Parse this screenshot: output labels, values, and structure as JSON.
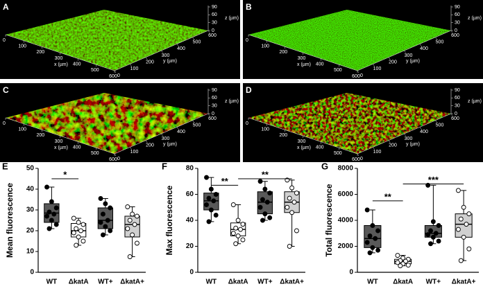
{
  "images": [
    {
      "label": "A",
      "style": "dense"
    },
    {
      "label": "B",
      "style": "fine"
    },
    {
      "label": "C",
      "style": "patchy"
    },
    {
      "label": "D",
      "style": "sparse"
    }
  ],
  "image_axes": {
    "x_label": "x (µm)",
    "y_label": "y (µm)",
    "z_label": "z (µm)",
    "x_ticks": [
      0,
      100,
      200,
      300,
      400,
      500,
      600
    ],
    "y_ticks": [
      0,
      100,
      200,
      300,
      400,
      500,
      600
    ],
    "z_ticks": [
      0,
      30,
      60,
      90
    ]
  },
  "chart_data": [
    {
      "type": "box",
      "label": "E",
      "ylabel": "Mean fluorescence",
      "categories": [
        "WT",
        "ΔkatA",
        "WT+",
        "ΔkatA+"
      ],
      "ylim": [
        0,
        50
      ],
      "yticks": [
        0,
        10,
        20,
        30,
        40,
        50
      ],
      "boxes": [
        {
          "min": 21,
          "q1": 24,
          "median": 28.5,
          "q3": 33,
          "max": 41,
          "color": "#595959",
          "point_color": "#000",
          "points": [
            41,
            34,
            31,
            29,
            28,
            27,
            25,
            23,
            21
          ]
        },
        {
          "min": 13,
          "q1": 17,
          "median": 20,
          "q3": 23.5,
          "max": 26,
          "color": "#fff",
          "point_color": "#fff",
          "points": [
            26,
            24,
            23,
            21,
            20,
            19,
            17,
            15,
            13
          ]
        },
        {
          "min": 18,
          "q1": 21,
          "median": 25,
          "q3": 31,
          "max": 35.5,
          "color": "#595959",
          "point_color": "#000",
          "points": [
            35.5,
            33,
            31,
            28,
            25,
            24,
            22,
            20,
            18
          ]
        },
        {
          "min": 7.5,
          "q1": 17,
          "median": 23,
          "q3": 27,
          "max": 31.5,
          "color": "#d0d0d0",
          "point_color": "#fff",
          "points": [
            31.5,
            28,
            27,
            25,
            23,
            21,
            18,
            14,
            7.5
          ]
        }
      ],
      "significance": [
        {
          "label": "*",
          "from": 0,
          "to": 1,
          "y": 45
        }
      ]
    },
    {
      "type": "box",
      "label": "F",
      "ylabel": "Max fluorescence",
      "categories": [
        "WT",
        "ΔkatA",
        "WT+",
        "ΔkatA+"
      ],
      "ylim": [
        0,
        80
      ],
      "yticks": [
        0,
        20,
        40,
        60,
        80
      ],
      "boxes": [
        {
          "min": 39,
          "q1": 48,
          "median": 55,
          "q3": 61,
          "max": 73,
          "color": "#595959",
          "point_color": "#000",
          "points": [
            73,
            64,
            60,
            57,
            55,
            52,
            48,
            44,
            39
          ]
        },
        {
          "min": 22,
          "q1": 28,
          "median": 33,
          "q3": 38,
          "max": 52,
          "color": "#fff",
          "point_color": "#fff",
          "points": [
            52,
            40,
            37,
            34,
            33,
            30,
            28,
            25,
            22
          ]
        },
        {
          "min": 40,
          "q1": 45,
          "median": 54,
          "q3": 62,
          "max": 70,
          "color": "#595959",
          "point_color": "#000",
          "points": [
            70,
            64,
            61,
            56,
            54,
            50,
            45,
            42,
            40
          ]
        },
        {
          "min": 20,
          "q1": 46,
          "median": 54,
          "q3": 62,
          "max": 71,
          "color": "#d0d0d0",
          "point_color": "#fff",
          "points": [
            71,
            65,
            61,
            57,
            54,
            50,
            46,
            32,
            20
          ]
        }
      ],
      "significance": [
        {
          "label": "**",
          "from": 0,
          "to": 1,
          "y": 67
        },
        {
          "label": "**",
          "from": 1,
          "to": 3,
          "y": 72
        }
      ]
    },
    {
      "type": "box",
      "label": "G",
      "ylabel": "Total fluorescence",
      "categories": [
        "WT",
        "ΔkatA",
        "WT+",
        "ΔkatA+"
      ],
      "ylim": [
        0,
        8000
      ],
      "yticks": [
        0,
        2000,
        4000,
        6000,
        8000
      ],
      "boxes": [
        {
          "min": 1500,
          "q1": 1900,
          "median": 2600,
          "q3": 3600,
          "max": 4800,
          "color": "#595959",
          "point_color": "#000",
          "points": [
            4800,
            3600,
            3200,
            2800,
            2600,
            2300,
            1900,
            1700,
            1500
          ]
        },
        {
          "min": 500,
          "q1": 650,
          "median": 850,
          "q3": 1000,
          "max": 1300,
          "color": "#fff",
          "point_color": "#fff",
          "points": [
            1300,
            1100,
            1000,
            900,
            850,
            750,
            650,
            550,
            500
          ]
        },
        {
          "min": 2200,
          "q1": 2700,
          "median": 3000,
          "q3": 3600,
          "max": 6700,
          "color": "#595959",
          "point_color": "#000",
          "points": [
            6700,
            3900,
            3600,
            3200,
            3000,
            2900,
            2700,
            2400,
            2200
          ]
        },
        {
          "min": 900,
          "q1": 2700,
          "median": 3700,
          "q3": 4500,
          "max": 6300,
          "color": "#d0d0d0",
          "point_color": "#fff",
          "points": [
            6300,
            5000,
            4500,
            4100,
            3700,
            3300,
            2700,
            1800,
            900
          ]
        }
      ],
      "significance": [
        {
          "label": "**",
          "from": 0,
          "to": 1,
          "y": 5500
        },
        {
          "label": "***",
          "from": 1,
          "to": 3,
          "y": 6800
        }
      ]
    }
  ]
}
